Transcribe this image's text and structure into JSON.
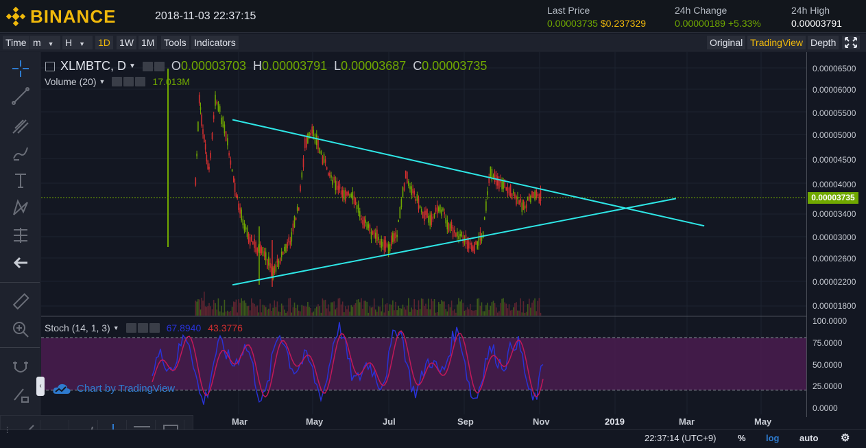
{
  "header": {
    "brand": "BINANCE",
    "datetime": "2018-11-03 22:37:15",
    "last_price_label": "Last Price",
    "last_price_btc": "0.00003735",
    "last_price_usd": "$0.237329",
    "change_label": "24h Change",
    "change_abs": "0.00000189",
    "change_pct": "+5.33%",
    "high_label": "24h High",
    "high_value": "0.00003791"
  },
  "toolbar": {
    "time": "Time",
    "minutes": "m",
    "hours": "H",
    "day": "1D",
    "week": "1W",
    "month": "1M",
    "tools": "Tools",
    "indicators": "Indicators",
    "original": "Original",
    "tradingview": "TradingView",
    "depth": "Depth"
  },
  "legend": {
    "symbol": "XLMBTC, D",
    "o_label": "O",
    "o_value": "0.00003703",
    "h_label": "H",
    "h_value": "0.00003791",
    "l_label": "L",
    "l_value": "0.00003687",
    "c_label": "C",
    "c_value": "0.00003735",
    "volume_label": "Volume (20)",
    "volume_value": "17.013M",
    "stoch_label": "Stoch (14, 1, 3)",
    "stoch_k": "67.8940",
    "stoch_d": "43.3776"
  },
  "price_axis": {
    "ticks": [
      "0.00006500",
      "0.00006000",
      "0.00005500",
      "0.00005000",
      "0.00004500",
      "0.00004000",
      "0.00003400",
      "0.00003000",
      "0.00002600",
      "0.00002200",
      "0.00001800"
    ],
    "current_price": "0.00003735"
  },
  "stoch_axis": {
    "ticks": [
      "100.0000",
      "75.0000",
      "50.0000",
      "25.0000",
      "0.0000"
    ]
  },
  "x_axis": {
    "labels": [
      "Mar",
      "May",
      "Jul",
      "Sep",
      "Nov",
      "2019",
      "Mar",
      "May"
    ]
  },
  "footer": {
    "clock": "22:37:14 (UTC+9)",
    "percent": "%",
    "log": "log",
    "auto": "auto"
  },
  "watermark": "Chart by TradingView",
  "colors": {
    "brand": "#f0b90b",
    "up": "#70a800",
    "down": "#d32f2f",
    "trendline": "#2ee6e6",
    "stoch_k": "#2932d6",
    "stoch_d": "#c2185b",
    "stoch_band": "#4a1c4f"
  },
  "chart_data": {
    "type": "line",
    "title": "XLMBTC, D",
    "y_scale": "log",
    "close_series": [
      {
        "x": "2018-01-25",
        "y": 4e-05
      },
      {
        "x": "2018-01-28",
        "y": 5.7e-05
      },
      {
        "x": "2018-02-01",
        "y": 4.8e-05
      },
      {
        "x": "2018-02-05",
        "y": 4.2e-05
      },
      {
        "x": "2018-02-10",
        "y": 5.8e-05
      },
      {
        "x": "2018-02-15",
        "y": 5.3e-05
      },
      {
        "x": "2018-02-20",
        "y": 4.7e-05
      },
      {
        "x": "2018-02-25",
        "y": 4e-05
      },
      {
        "x": "2018-03-01",
        "y": 3.6e-05
      },
      {
        "x": "2018-03-08",
        "y": 3.2e-05
      },
      {
        "x": "2018-03-15",
        "y": 3e-05
      },
      {
        "x": "2018-03-22",
        "y": 2.9e-05
      },
      {
        "x": "2018-03-29",
        "y": 2.7e-05
      },
      {
        "x": "2018-04-05",
        "y": 2.9e-05
      },
      {
        "x": "2018-04-12",
        "y": 3.1e-05
      },
      {
        "x": "2018-04-19",
        "y": 3.6e-05
      },
      {
        "x": "2018-04-24",
        "y": 4.7e-05
      },
      {
        "x": "2018-05-01",
        "y": 5e-05
      },
      {
        "x": "2018-05-06",
        "y": 4.6e-05
      },
      {
        "x": "2018-05-13",
        "y": 4.2e-05
      },
      {
        "x": "2018-05-20",
        "y": 3.9e-05
      },
      {
        "x": "2018-05-27",
        "y": 3.8e-05
      },
      {
        "x": "2018-06-03",
        "y": 3.7e-05
      },
      {
        "x": "2018-06-10",
        "y": 3.4e-05
      },
      {
        "x": "2018-06-17",
        "y": 3.2e-05
      },
      {
        "x": "2018-06-24",
        "y": 3.1e-05
      },
      {
        "x": "2018-07-01",
        "y": 3e-05
      },
      {
        "x": "2018-07-08",
        "y": 3.2e-05
      },
      {
        "x": "2018-07-15",
        "y": 4.1e-05
      },
      {
        "x": "2018-07-22",
        "y": 3.8e-05
      },
      {
        "x": "2018-07-29",
        "y": 3.5e-05
      },
      {
        "x": "2018-08-05",
        "y": 3.4e-05
      },
      {
        "x": "2018-08-12",
        "y": 3.6e-05
      },
      {
        "x": "2018-08-19",
        "y": 3.3e-05
      },
      {
        "x": "2018-08-26",
        "y": 3.2e-05
      },
      {
        "x": "2018-09-02",
        "y": 3.1e-05
      },
      {
        "x": "2018-09-09",
        "y": 3e-05
      },
      {
        "x": "2018-09-16",
        "y": 3.2e-05
      },
      {
        "x": "2018-09-22",
        "y": 4.2e-05
      },
      {
        "x": "2018-09-29",
        "y": 4e-05
      },
      {
        "x": "2018-10-06",
        "y": 3.9e-05
      },
      {
        "x": "2018-10-13",
        "y": 3.7e-05
      },
      {
        "x": "2018-10-20",
        "y": 3.6e-05
      },
      {
        "x": "2018-10-27",
        "y": 3.8e-05
      },
      {
        "x": "2018-11-03",
        "y": 3.74e-05
      }
    ],
    "trendlines": [
      {
        "name": "upper",
        "from": {
          "x": "2018-02-24",
          "y": 5.25e-05
        },
        "to": {
          "x": "2019-03-15",
          "y": 3.3e-05
        }
      },
      {
        "name": "lower",
        "from": {
          "x": "2018-02-24",
          "y": 2.55e-05
        },
        "to": {
          "x": "2019-02-20",
          "y": 3.72e-05
        }
      }
    ],
    "current_price_line": 3.735e-05,
    "stoch_bands": [
      20,
      80
    ]
  }
}
